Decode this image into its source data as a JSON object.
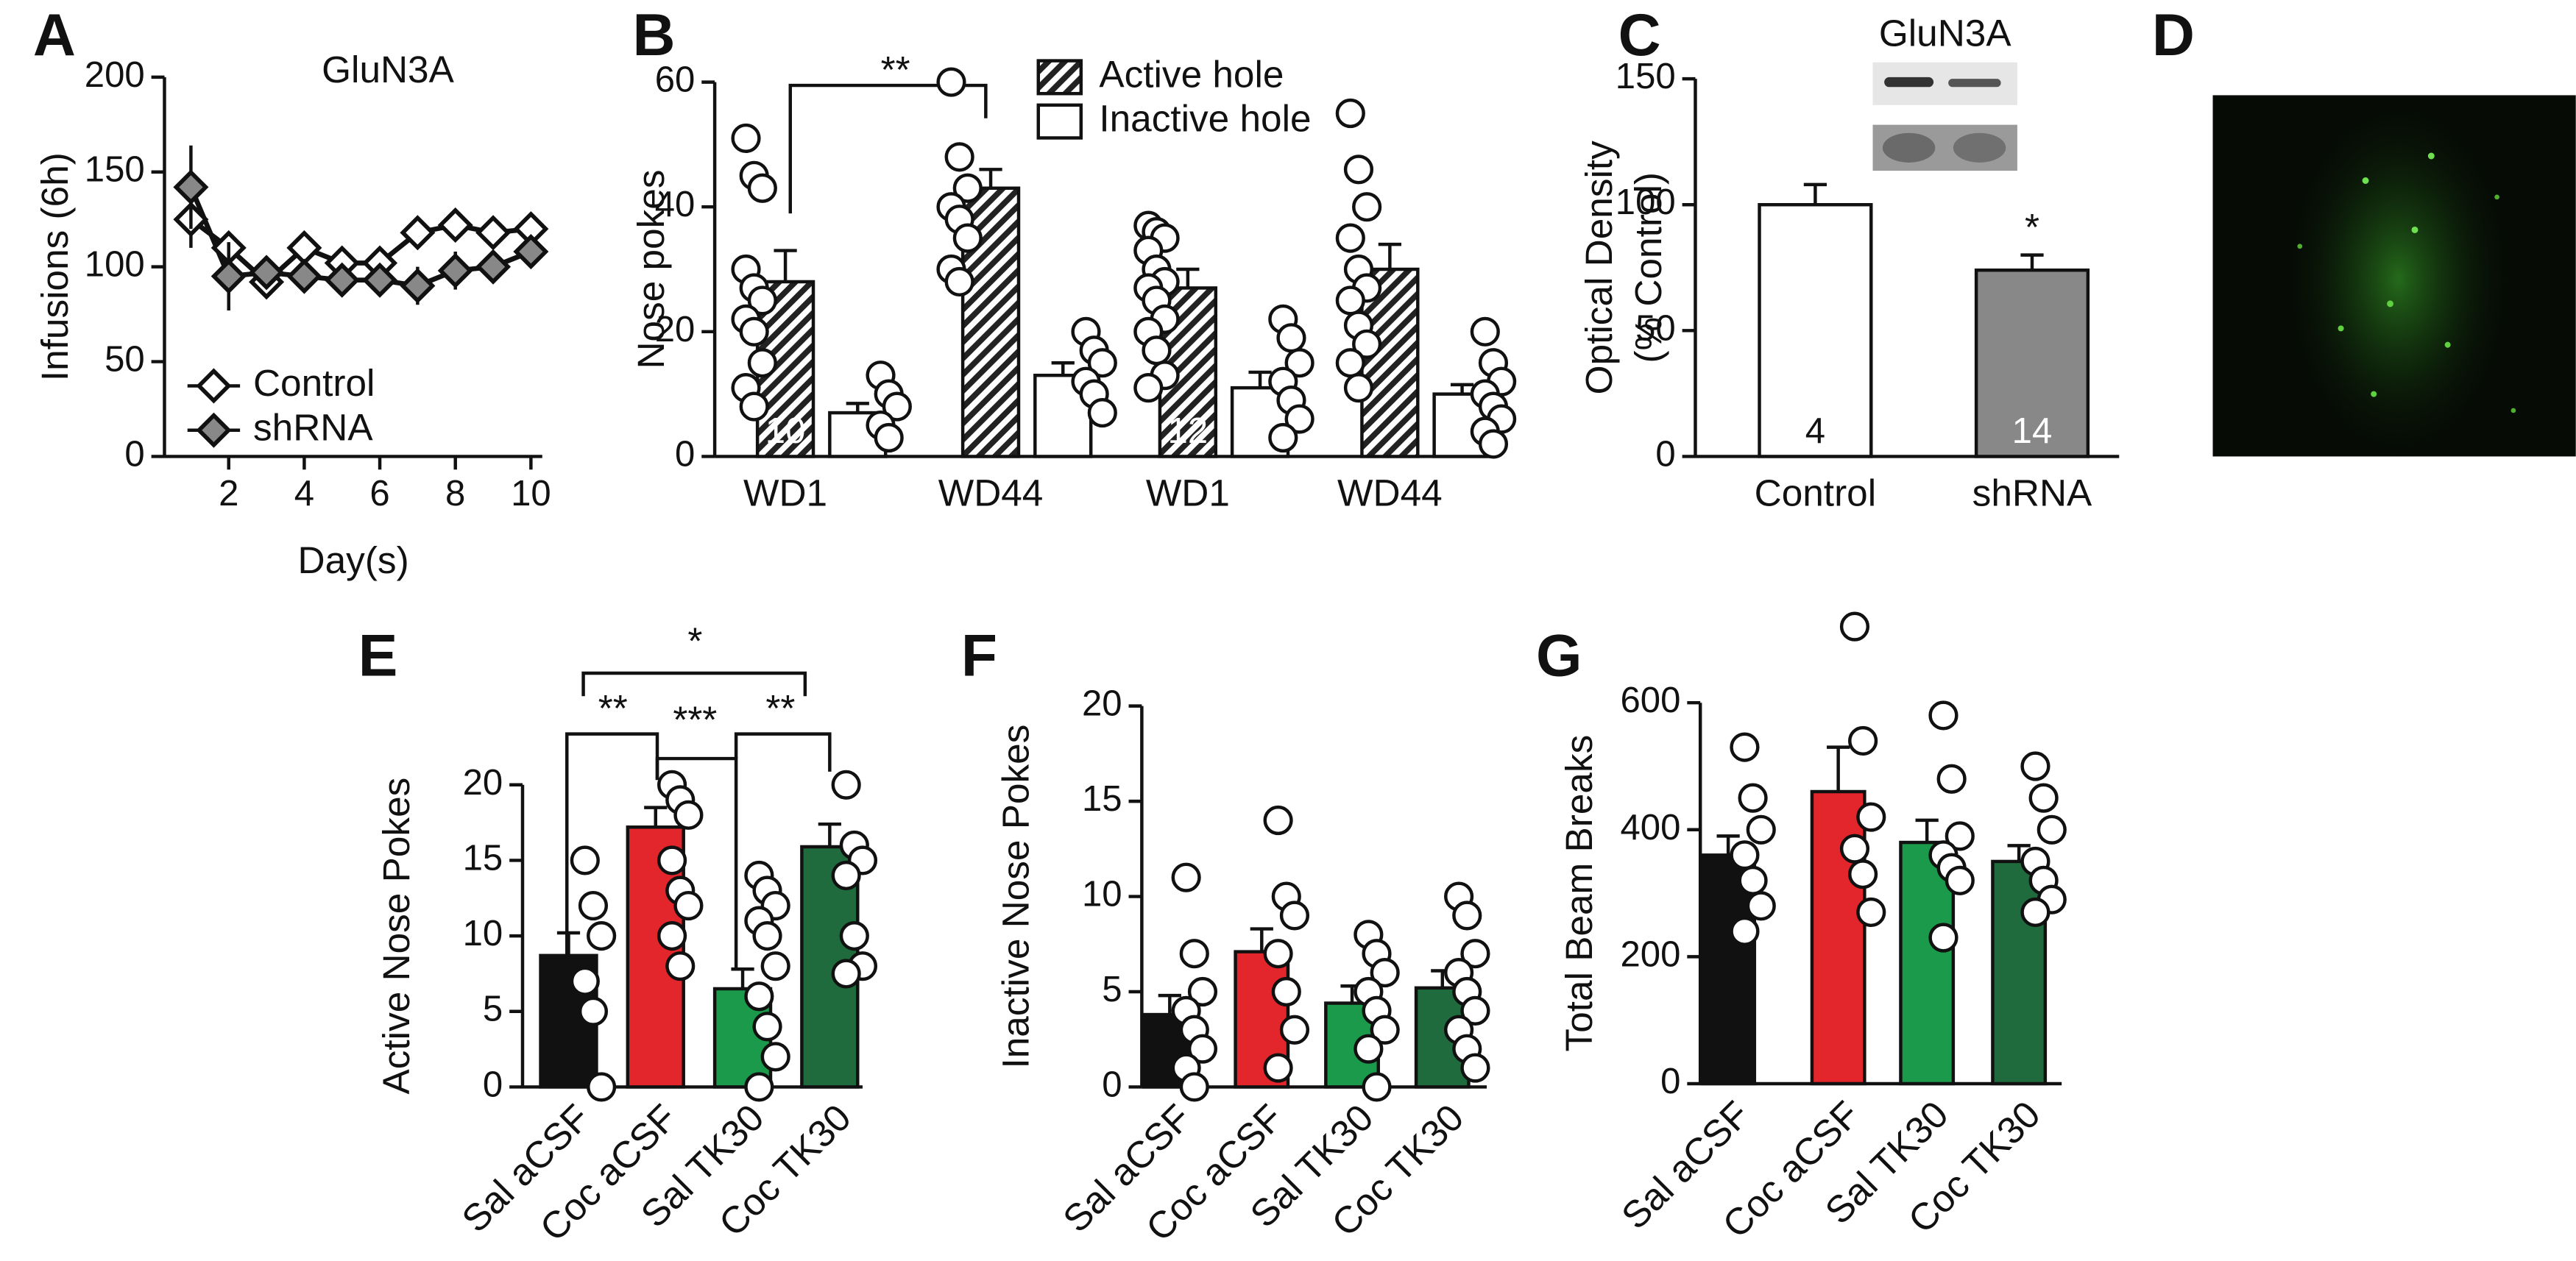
{
  "panel_labels": [
    "A",
    "B",
    "C",
    "D",
    "E",
    "F",
    "G"
  ],
  "chart_data": [
    {
      "type": "line",
      "title": "GluN3A",
      "x_label": "Day(s)",
      "y_label": "Infusions (6h)",
      "x": [
        1,
        2,
        3,
        4,
        5,
        6,
        7,
        8,
        9,
        10
      ],
      "xlim": [
        0.3,
        10.3
      ],
      "xticks": [
        2,
        4,
        6,
        8,
        10
      ],
      "ylim": [
        0,
        200
      ],
      "yticks": [
        0,
        50,
        100,
        150,
        200
      ],
      "series": [
        {
          "name": "Control",
          "color": "#ffffff",
          "values": [
            125,
            110,
            92,
            110,
            102,
            102,
            118,
            122,
            118,
            120
          ],
          "errors": [
            15,
            8,
            8,
            8,
            6,
            6,
            6,
            6,
            6,
            6
          ]
        },
        {
          "name": "shRNA",
          "color": "#888888",
          "values": [
            142,
            95,
            97,
            95,
            93,
            93,
            90,
            98,
            100,
            108
          ],
          "errors": [
            22,
            18,
            8,
            8,
            8,
            8,
            10,
            10,
            8,
            8
          ]
        }
      ]
    },
    {
      "type": "bar",
      "y_label": "Nose pokes",
      "categories": [
        "WD1",
        "WD44",
        "WD1",
        "WD44"
      ],
      "ylim": [
        0,
        60
      ],
      "yticks": [
        0,
        20,
        40,
        60
      ],
      "annotations": [
        "**"
      ],
      "series": [
        {
          "name": "Active hole",
          "color": "#222222",
          "pattern": "hatch",
          "values": [
            28,
            43,
            27,
            30
          ],
          "errors": [
            5,
            3,
            3,
            4
          ],
          "n_labels": [
            "10",
            null,
            "12",
            null
          ],
          "points": [
            [
              51,
              45,
              43,
              30,
              27,
              25,
              22,
              20,
              15,
              11,
              8
            ],
            [
              60,
              48,
              43,
              40,
              38,
              35,
              30,
              28
            ],
            [
              37,
              36,
              35,
              33,
              30,
              28,
              27,
              25,
              22,
              20,
              17,
              13,
              11
            ],
            [
              55,
              46,
              40,
              35,
              30,
              27,
              25,
              21,
              18,
              15,
              11
            ]
          ]
        },
        {
          "name": "Inactive hole",
          "color": "#ffffff",
          "values": [
            7,
            13,
            11,
            10
          ],
          "errors": [
            1.5,
            2,
            2.5,
            1.5
          ],
          "points": [
            [
              13,
              10,
              8,
              5,
              3
            ],
            [
              20,
              17,
              15,
              12,
              10,
              7
            ],
            [
              22,
              19,
              15,
              12,
              9,
              6,
              3
            ],
            [
              20,
              15,
              12,
              10,
              8,
              6,
              4,
              2
            ]
          ]
        }
      ]
    },
    {
      "type": "bar",
      "title": "GluN3A",
      "y_label": [
        "Optical Density",
        "(% Control)"
      ],
      "categories": [
        "Control",
        "shRNA"
      ],
      "values": [
        100,
        74
      ],
      "errors": [
        8,
        6
      ],
      "colors": [
        "#ffffff",
        "#888888"
      ],
      "n_labels": [
        "4",
        "14"
      ],
      "ylim": [
        0,
        150
      ],
      "yticks": [
        0,
        50,
        100,
        150
      ],
      "annotations": [
        "*"
      ]
    },
    {
      "type": "bar",
      "y_label": "Active Nose Pokes",
      "categories": [
        "Sal aCSF",
        "Coc aCSF",
        "Sal TK30",
        "Coc TK30"
      ],
      "values": [
        8.7,
        17.2,
        6.5,
        15.9
      ],
      "errors": [
        1.5,
        1.3,
        1.3,
        1.5
      ],
      "colors": [
        "#111111",
        "#e3262b",
        "#1a9a4a",
        "#1f6b3e"
      ],
      "points": [
        [
          15,
          12,
          10,
          7,
          5,
          0
        ],
        [
          20,
          19,
          18,
          15,
          13,
          12,
          10,
          8
        ],
        [
          14,
          13,
          12,
          11,
          10,
          8,
          6,
          4,
          2,
          0
        ],
        [
          20,
          16,
          15,
          14,
          10,
          8,
          7.5
        ]
      ],
      "ylim": [
        0,
        20
      ],
      "yticks": [
        0,
        5,
        10,
        15,
        20
      ],
      "annotations": [
        "*",
        "**",
        "***",
        "**"
      ]
    },
    {
      "type": "bar",
      "y_label": "Inactive Nose Pokes",
      "categories": [
        "Sal aCSF",
        "Coc aCSF",
        "Sal TK30",
        "Coc TK30"
      ],
      "values": [
        3.8,
        7.1,
        4.4,
        5.2
      ],
      "errors": [
        1,
        1.2,
        0.9,
        0.9
      ],
      "colors": [
        "#111111",
        "#e3262b",
        "#1a9a4a",
        "#1f6b3e"
      ],
      "points": [
        [
          11,
          7,
          5,
          4,
          3,
          2,
          1,
          0
        ],
        [
          14,
          10,
          9,
          7,
          5,
          3,
          1
        ],
        [
          8,
          7,
          6,
          5,
          4,
          3,
          2,
          0
        ],
        [
          10,
          9,
          7,
          6,
          5,
          4,
          3,
          2,
          1
        ]
      ],
      "ylim": [
        0,
        20
      ],
      "yticks": [
        0,
        5,
        10,
        15,
        20
      ]
    },
    {
      "type": "bar",
      "y_label": "Total Beam Breaks",
      "categories": [
        "Sal aCSF",
        "Coc aCSF",
        "Sal TK30",
        "Coc TK30"
      ],
      "values": [
        360,
        460,
        380,
        350
      ],
      "errors": [
        30,
        70,
        35,
        25
      ],
      "colors": [
        "#111111",
        "#e3262b",
        "#1a9a4a",
        "#1f6b3e"
      ],
      "points": [
        [
          530,
          450,
          400,
          360,
          320,
          280,
          240
        ],
        [
          720,
          540,
          420,
          370,
          330,
          270
        ],
        [
          580,
          480,
          390,
          360,
          340,
          320,
          230
        ],
        [
          500,
          450,
          400,
          350,
          320,
          290,
          270
        ]
      ],
      "ylim": [
        0,
        600
      ],
      "yticks": [
        0,
        200,
        400,
        600
      ]
    }
  ]
}
